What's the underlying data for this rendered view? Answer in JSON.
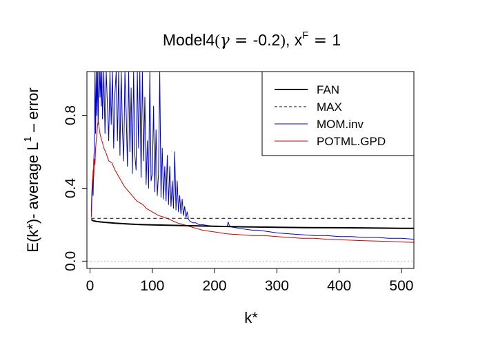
{
  "chart_data": {
    "type": "line",
    "title": {
      "prefix": "Model4",
      "open_paren": "(",
      "gamma": "γ",
      "equals": " = ",
      "gamma_value": "-0.2",
      "close_paren": ")",
      "sep": ", ",
      "x": "x",
      "x_sup": "F",
      "x_equals": " = ",
      "x_value": "1"
    },
    "xlabel": "k*",
    "ylabel": {
      "main": "E(k*)- average L",
      "sup": "1",
      "suffix": " – error"
    },
    "xlim": [
      -5,
      520
    ],
    "ylim": [
      -0.04,
      1.04
    ],
    "x_ticks": [
      {
        "value": 0,
        "label": "0"
      },
      {
        "value": 100,
        "label": "100"
      },
      {
        "value": 200,
        "label": "200"
      },
      {
        "value": 300,
        "label": "300"
      },
      {
        "value": 400,
        "label": "400"
      },
      {
        "value": 500,
        "label": "500"
      }
    ],
    "y_ticks": [
      {
        "value": 0.0,
        "label": "0.0"
      },
      {
        "value": 0.4,
        "label": "0.4"
      },
      {
        "value": 0.8,
        "label": "0.8"
      }
    ],
    "reference_line": {
      "y": 0.0,
      "color": "#bbbbbb",
      "style": "dotted"
    },
    "legend": {
      "placement": "top-right",
      "entries": [
        {
          "label": "FAN",
          "color": "#000000",
          "style": "solid",
          "weight": "thick"
        },
        {
          "label": "MAX",
          "color": "#000000",
          "style": "dashed",
          "weight": "thin"
        },
        {
          "label": "MOM.inv",
          "color": "#0000cc",
          "style": "solid",
          "weight": "thin"
        },
        {
          "label": "POTML.GPD",
          "color": "#cc0000",
          "style": "solid",
          "weight": "thin"
        }
      ]
    },
    "series": [
      {
        "name": "FAN",
        "color": "#000000",
        "x": [
          2,
          5,
          10,
          20,
          40,
          60,
          80,
          100,
          150,
          200,
          250,
          300,
          350,
          400,
          450,
          500,
          520
        ],
        "y": [
          0.228,
          0.222,
          0.218,
          0.214,
          0.208,
          0.204,
          0.201,
          0.199,
          0.195,
          0.191,
          0.188,
          0.186,
          0.184,
          0.183,
          0.182,
          0.18,
          0.18
        ]
      },
      {
        "name": "MAX",
        "color": "#000000",
        "x": [
          2,
          520
        ],
        "y": [
          0.235,
          0.235
        ]
      },
      {
        "name": "MOM.inv",
        "color": "#0000cc",
        "x": [
          2,
          3,
          4,
          5,
          6,
          7,
          8,
          9,
          10,
          11,
          12,
          13,
          14,
          15,
          16,
          17,
          18,
          19,
          20,
          22,
          24,
          26,
          28,
          30,
          32,
          34,
          36,
          38,
          40,
          42,
          44,
          46,
          48,
          50,
          52,
          54,
          56,
          58,
          60,
          62,
          64,
          66,
          68,
          70,
          72,
          74,
          76,
          78,
          80,
          82,
          84,
          86,
          88,
          90,
          92,
          94,
          96,
          98,
          100,
          102,
          104,
          106,
          108,
          110,
          112,
          114,
          116,
          118,
          120,
          122,
          124,
          126,
          128,
          130,
          132,
          134,
          136,
          138,
          140,
          142,
          144,
          146,
          148,
          150,
          152,
          154,
          156,
          158,
          160,
          165,
          170,
          175,
          180,
          190,
          200,
          210,
          220,
          222,
          224,
          230,
          240,
          250,
          260,
          270,
          280,
          290,
          300,
          320,
          340,
          360,
          380,
          400,
          420,
          440,
          460,
          480,
          500,
          520
        ],
        "y": [
          0.27,
          0.38,
          0.45,
          0.36,
          0.55,
          0.62,
          1.04,
          0.7,
          1.04,
          0.8,
          1.04,
          0.75,
          1.04,
          1.04,
          0.9,
          1.04,
          0.85,
          1.04,
          0.78,
          1.04,
          0.7,
          1.04,
          0.85,
          0.66,
          1.04,
          0.75,
          1.04,
          0.62,
          0.92,
          1.04,
          0.66,
          1.04,
          0.58,
          1.04,
          0.72,
          0.55,
          1.04,
          0.82,
          0.52,
          1.04,
          0.6,
          0.95,
          0.48,
          1.04,
          0.58,
          0.5,
          1.04,
          0.62,
          1.04,
          0.46,
          1.04,
          0.55,
          0.9,
          0.42,
          0.66,
          0.4,
          1.04,
          0.44,
          0.48,
          0.85,
          0.38,
          0.72,
          0.36,
          0.48,
          1.04,
          0.35,
          0.62,
          0.34,
          0.52,
          0.33,
          0.58,
          0.31,
          0.52,
          0.3,
          0.44,
          0.29,
          0.6,
          0.28,
          0.44,
          0.27,
          0.36,
          0.26,
          0.34,
          0.25,
          0.3,
          0.24,
          0.27,
          0.23,
          0.22,
          0.21,
          0.21,
          0.2,
          0.2,
          0.195,
          0.19,
          0.19,
          0.19,
          0.215,
          0.19,
          0.185,
          0.18,
          0.175,
          0.17,
          0.17,
          0.165,
          0.16,
          0.155,
          0.15,
          0.145,
          0.14,
          0.14,
          0.135,
          0.135,
          0.13,
          0.13,
          0.125,
          0.125,
          0.12
        ]
      },
      {
        "name": "POTML.GPD",
        "color": "#cc0000",
        "x": [
          2,
          3,
          4,
          5,
          6,
          7,
          8,
          9,
          10,
          11,
          12,
          13,
          14,
          15,
          16,
          18,
          20,
          22,
          25,
          28,
          30,
          35,
          40,
          45,
          50,
          55,
          60,
          65,
          70,
          75,
          80,
          85,
          90,
          95,
          100,
          110,
          120,
          130,
          140,
          150,
          160,
          170,
          180,
          190,
          200,
          220,
          240,
          260,
          280,
          300,
          320,
          340,
          360,
          380,
          400,
          420,
          440,
          460,
          480,
          500,
          520
        ],
        "y": [
          0.24,
          0.33,
          0.42,
          0.5,
          0.46,
          0.56,
          0.53,
          0.62,
          0.66,
          0.7,
          0.74,
          0.77,
          0.75,
          0.72,
          0.7,
          0.67,
          0.65,
          0.62,
          0.6,
          0.57,
          0.55,
          0.54,
          0.5,
          0.47,
          0.44,
          0.41,
          0.39,
          0.37,
          0.35,
          0.33,
          0.32,
          0.31,
          0.29,
          0.28,
          0.27,
          0.25,
          0.24,
          0.225,
          0.21,
          0.2,
          0.19,
          0.18,
          0.17,
          0.165,
          0.16,
          0.15,
          0.145,
          0.14,
          0.14,
          0.135,
          0.13,
          0.125,
          0.125,
          0.12,
          0.118,
          0.115,
          0.112,
          0.11,
          0.108,
          0.105,
          0.103
        ]
      }
    ]
  }
}
